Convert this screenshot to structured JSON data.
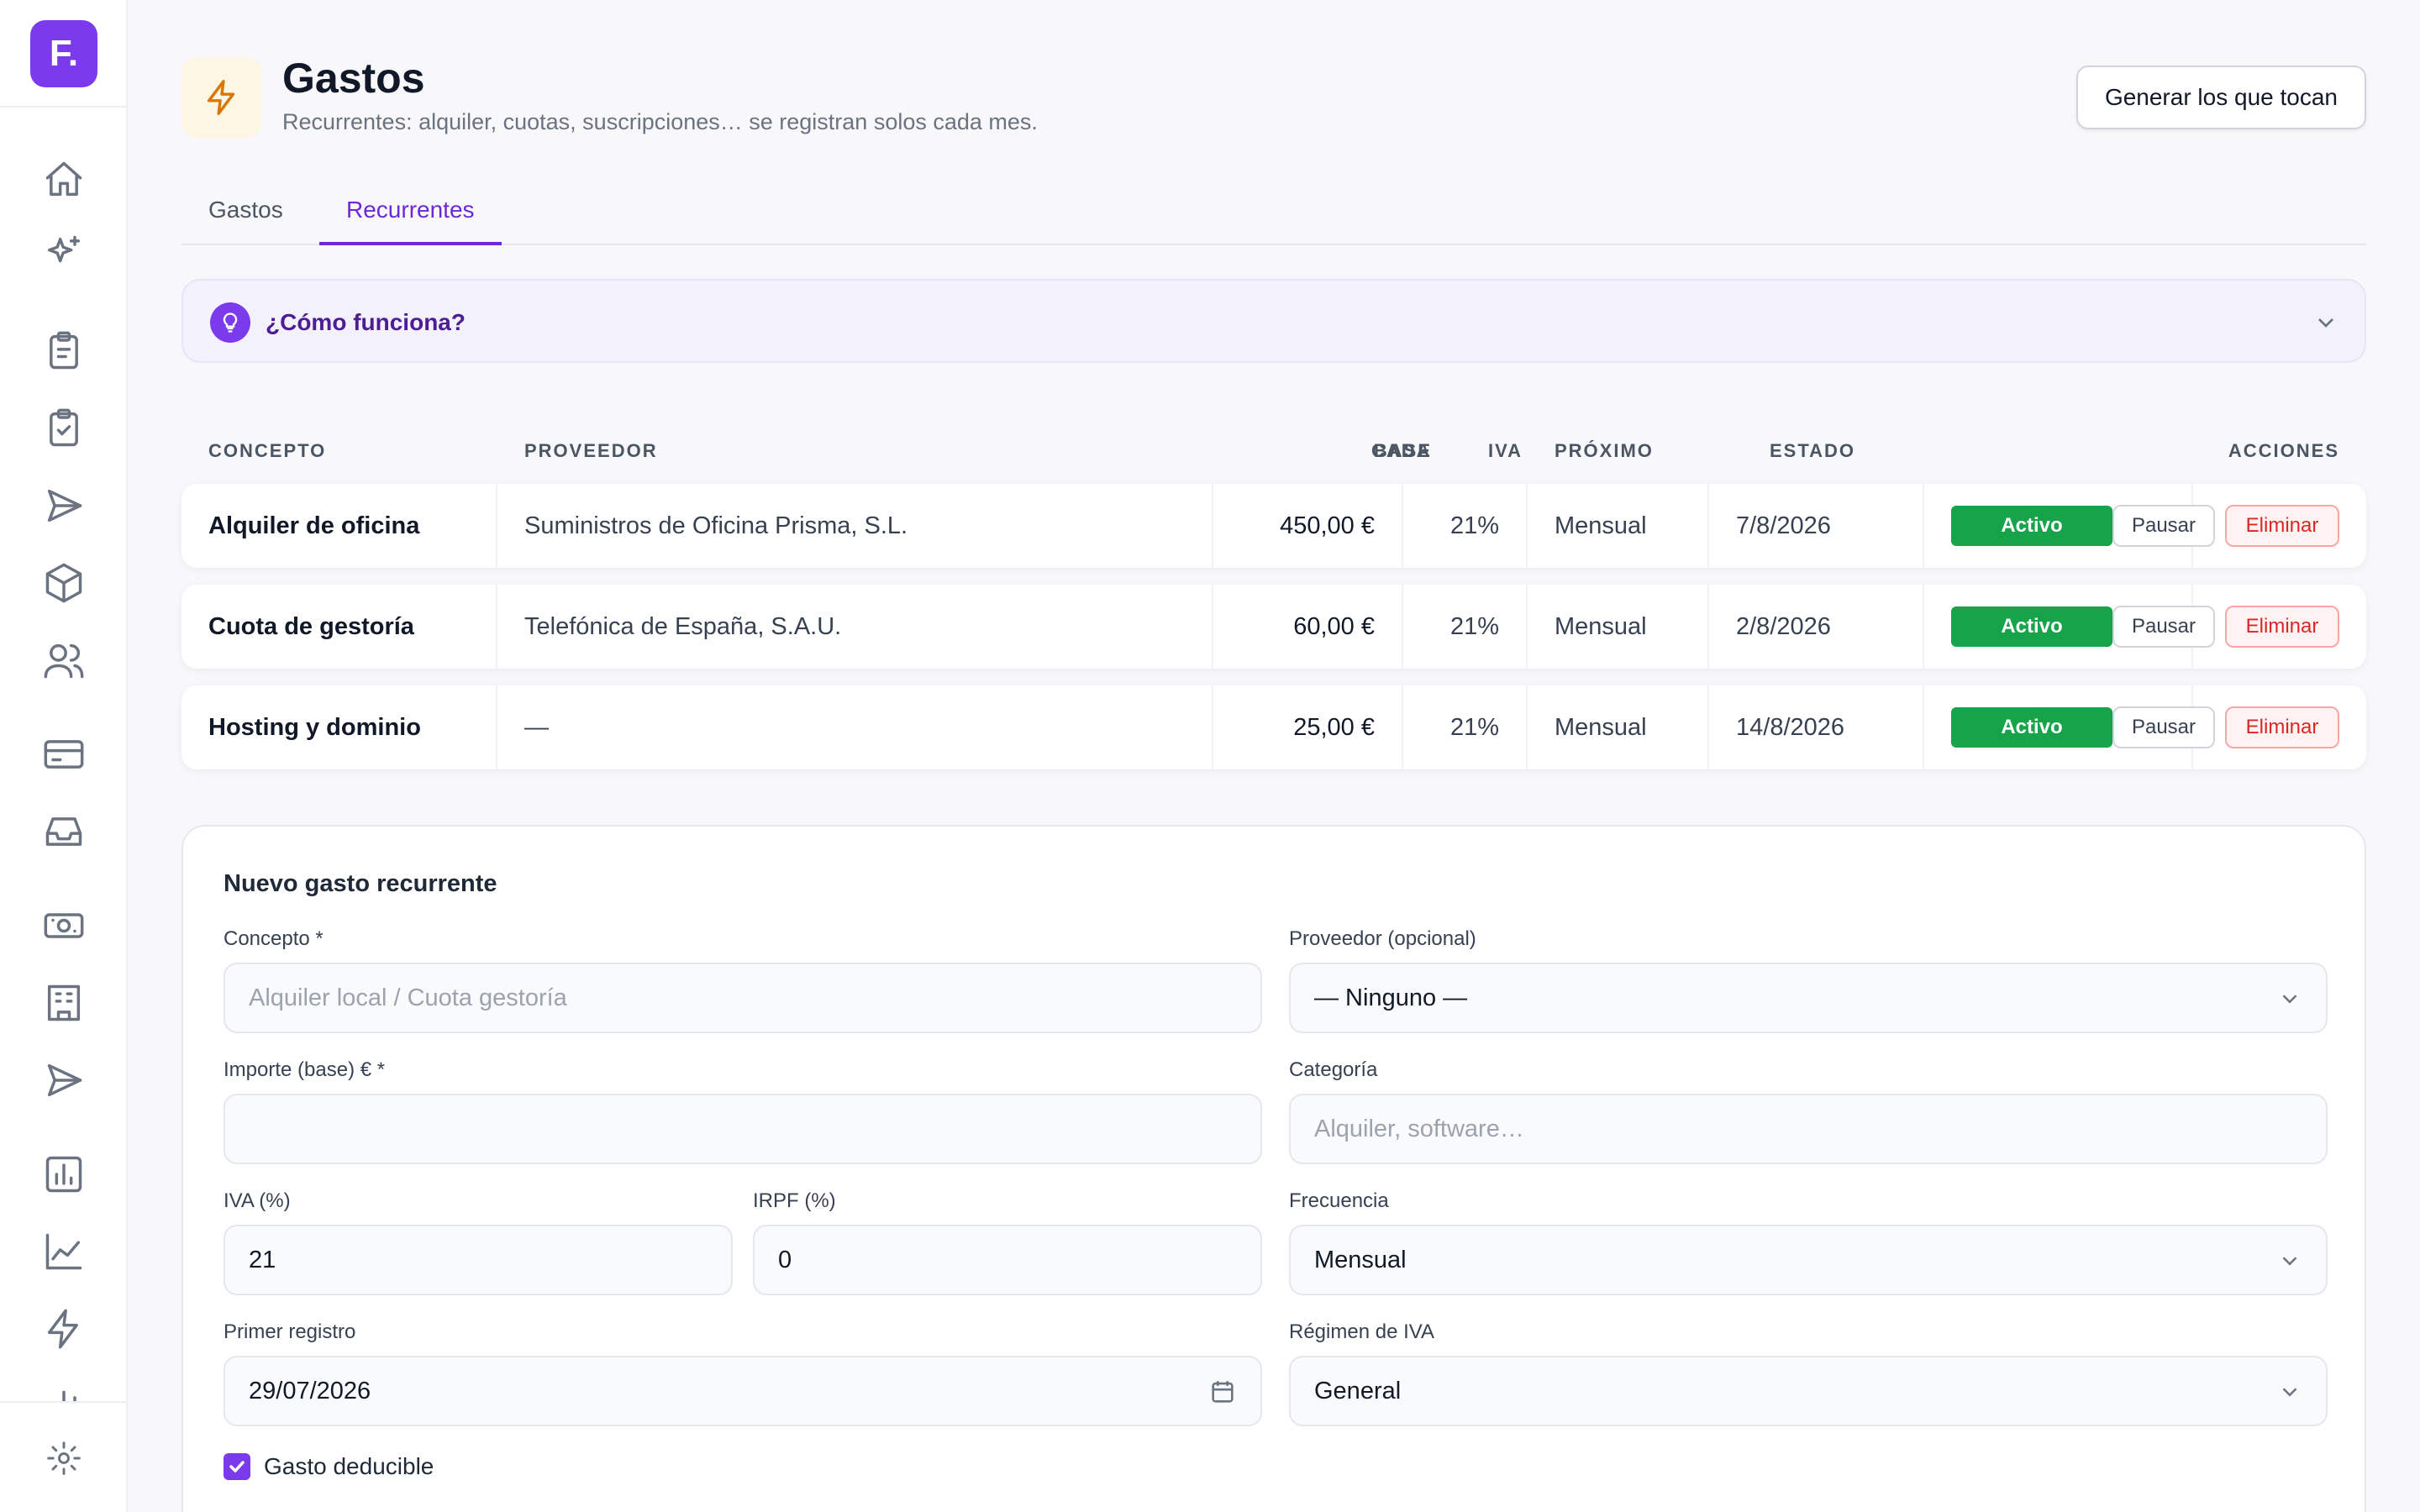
{
  "app": {
    "logo_text": "F.",
    "brand_color": "#7c3aed"
  },
  "sidebar": {
    "icons": [
      "home-icon",
      "sparkles-icon",
      "clipboard-list-icon",
      "clipboard-check-icon",
      "send-icon",
      "box-icon",
      "users-icon",
      "credit-card-icon",
      "inbox-icon",
      "banknote-icon",
      "building-icon",
      "send-alt-icon",
      "report-chart-icon",
      "line-chart-icon",
      "bolt-icon",
      "bar-chart-icon",
      "settings-icon"
    ]
  },
  "header": {
    "title": "Gastos",
    "subtitle": "Recurrentes: alquiler, cuotas, suscripciones… se registran solos cada mes.",
    "generate_button": "Generar los que tocan"
  },
  "tabs": [
    {
      "label": "Gastos",
      "active": false
    },
    {
      "label": "Recurrentes",
      "active": true
    }
  ],
  "howto": {
    "label": "¿Cómo funciona?"
  },
  "table": {
    "headers": {
      "concepto": "CONCEPTO",
      "proveedor": "PROVEEDOR",
      "base": "BASE",
      "iva": "IVA",
      "cada": "CADA",
      "proximo": "PRÓXIMO",
      "estado": "ESTADO",
      "acciones": "ACCIONES"
    },
    "rows": [
      {
        "concepto": "Alquiler de oficina",
        "proveedor": "Suministros de Oficina Prisma, S.L.",
        "base": "450,00 €",
        "iva": "21%",
        "cada": "Mensual",
        "proximo": "7/8/2026",
        "estado": "Activo",
        "pause": "Pausar",
        "delete": "Eliminar"
      },
      {
        "concepto": "Cuota de gestoría",
        "proveedor": "Telefónica de España, S.A.U.",
        "base": "60,00 €",
        "iva": "21%",
        "cada": "Mensual",
        "proximo": "2/8/2026",
        "estado": "Activo",
        "pause": "Pausar",
        "delete": "Eliminar"
      },
      {
        "concepto": "Hosting y dominio",
        "proveedor": "—",
        "base": "25,00 €",
        "iva": "21%",
        "cada": "Mensual",
        "proximo": "14/8/2026",
        "estado": "Activo",
        "pause": "Pausar",
        "delete": "Eliminar"
      }
    ]
  },
  "form": {
    "title": "Nuevo gasto recurrente",
    "concepto": {
      "label": "Concepto *",
      "value": "",
      "placeholder": "Alquiler local / Cuota gestoría"
    },
    "proveedor": {
      "label": "Proveedor (opcional)",
      "value": "— Ninguno —"
    },
    "importe": {
      "label": "Importe (base) € *",
      "value": ""
    },
    "categoria": {
      "label": "Categoría",
      "value": "",
      "placeholder": "Alquiler, software…"
    },
    "iva": {
      "label": "IVA (%)",
      "value": "21"
    },
    "irpf": {
      "label": "IRPF (%)",
      "value": "0"
    },
    "frecuencia": {
      "label": "Frecuencia",
      "value": "Mensual"
    },
    "primer_registro": {
      "label": "Primer registro",
      "value": "29/07/2026"
    },
    "regimen": {
      "label": "Régimen de IVA",
      "value": "General"
    },
    "deducible": {
      "label": "Gasto deducible",
      "checked": true
    }
  }
}
